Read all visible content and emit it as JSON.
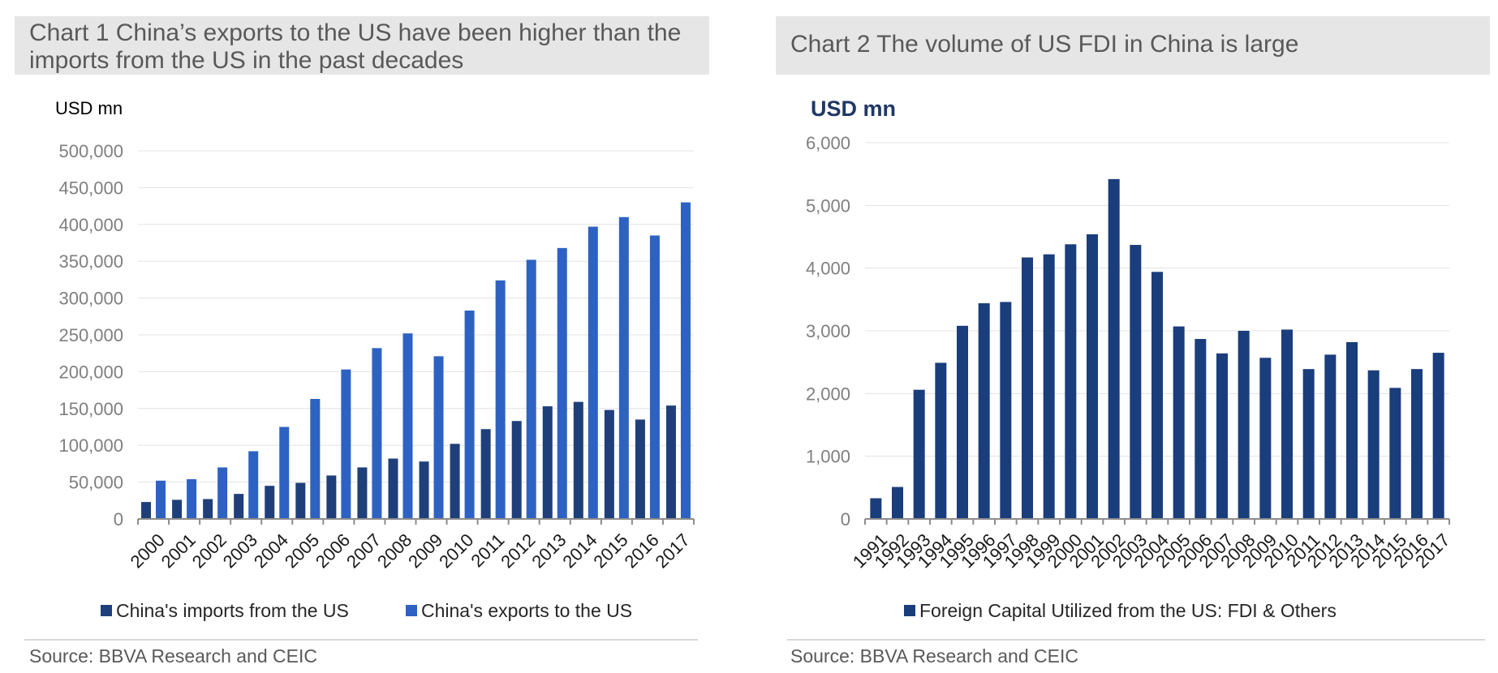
{
  "colors": {
    "imports": "#1f3f7a",
    "exports": "#2e62c2",
    "fdi": "#1a3d7c",
    "grid": "#e3e3e3",
    "axis": "#8c8c8c",
    "tick_text": "#7f7f7f"
  },
  "chart1": {
    "title": "Chart 1 China’s exports to the US have been higher than the imports from the US in the past decades",
    "source": "Source: BBVA Research and CEIC"
  },
  "chart2": {
    "title": "Chart 2 The volume of US FDI in China is large",
    "source": "Source: BBVA Research and CEIC"
  },
  "chart_data": [
    {
      "type": "bar",
      "title": "Chart 1 China’s exports to the US have been higher than the imports from the US in the past decades",
      "ylabel": "USD mn",
      "ylim": [
        0,
        500000
      ],
      "yticks": [
        "0",
        "50,000",
        "100,000",
        "150,000",
        "200,000",
        "250,000",
        "300,000",
        "350,000",
        "400,000",
        "450,000",
        "500,000"
      ],
      "grid": true,
      "legend": "bottom",
      "categories": [
        "2000",
        "2001",
        "2002",
        "2003",
        "2004",
        "2005",
        "2006",
        "2007",
        "2008",
        "2009",
        "2010",
        "2011",
        "2012",
        "2013",
        "2014",
        "2015",
        "2016",
        "2017"
      ],
      "series": [
        {
          "name": "China's imports from the US",
          "values": [
            23000,
            26000,
            27000,
            34000,
            45000,
            49000,
            59000,
            70000,
            82000,
            78000,
            102000,
            122000,
            133000,
            153000,
            159000,
            148000,
            135000,
            154000
          ]
        },
        {
          "name": "China's exports to the US",
          "values": [
            52000,
            54000,
            70000,
            92000,
            125000,
            163000,
            203000,
            232000,
            252000,
            221000,
            283000,
            324000,
            352000,
            368000,
            397000,
            410000,
            385000,
            430000
          ]
        }
      ]
    },
    {
      "type": "bar",
      "title": "Chart 2 The volume of US FDI in China is large",
      "ylabel": "USD mn",
      "ylim": [
        0,
        6000
      ],
      "yticks": [
        "0",
        "1,000",
        "2,000",
        "3,000",
        "4,000",
        "5,000",
        "6,000"
      ],
      "grid": true,
      "legend": "bottom",
      "categories": [
        "1991",
        "1992",
        "1993",
        "1994",
        "1995",
        "1996",
        "1997",
        "1998",
        "1999",
        "2000",
        "2001",
        "2002",
        "2003",
        "2004",
        "2005",
        "2006",
        "2007",
        "2008",
        "2009",
        "2010",
        "2011",
        "2012",
        "2013",
        "2014",
        "2015",
        "2016",
        "2017"
      ],
      "series": [
        {
          "name": "Foreign Capital Utilized from the US: FDI & Others",
          "values": [
            330,
            510,
            2060,
            2490,
            3080,
            3440,
            3460,
            4170,
            4220,
            4380,
            4540,
            5420,
            4370,
            3940,
            3070,
            2870,
            2640,
            3000,
            2570,
            3020,
            2390,
            2620,
            2820,
            2370,
            2090,
            2390,
            2650
          ]
        }
      ]
    }
  ]
}
